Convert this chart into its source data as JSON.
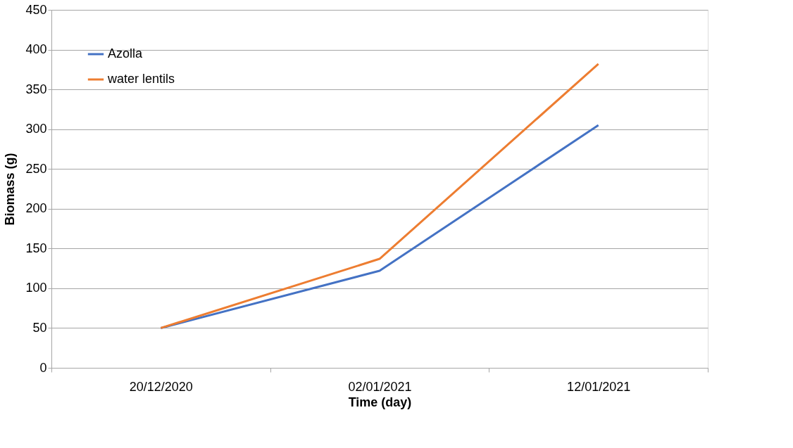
{
  "chart_data": {
    "type": "line",
    "xlabel": "Time (day)",
    "ylabel": "Biomass (g)",
    "categories": [
      "20/12/2020",
      "02/01/2021",
      "12/01/2021"
    ],
    "series": [
      {
        "name": "Azolla",
        "color": "#4472c4",
        "values": [
          50,
          122,
          305
        ]
      },
      {
        "name": "water lentils",
        "color": "#ed7d31",
        "values": [
          50,
          137,
          382
        ]
      }
    ],
    "ylim": [
      0,
      450
    ],
    "yticks": [
      0,
      50,
      100,
      150,
      200,
      250,
      300,
      350,
      400,
      450
    ],
    "grid": "y",
    "legend": "top left",
    "marker": "none",
    "line_style": "solid"
  }
}
